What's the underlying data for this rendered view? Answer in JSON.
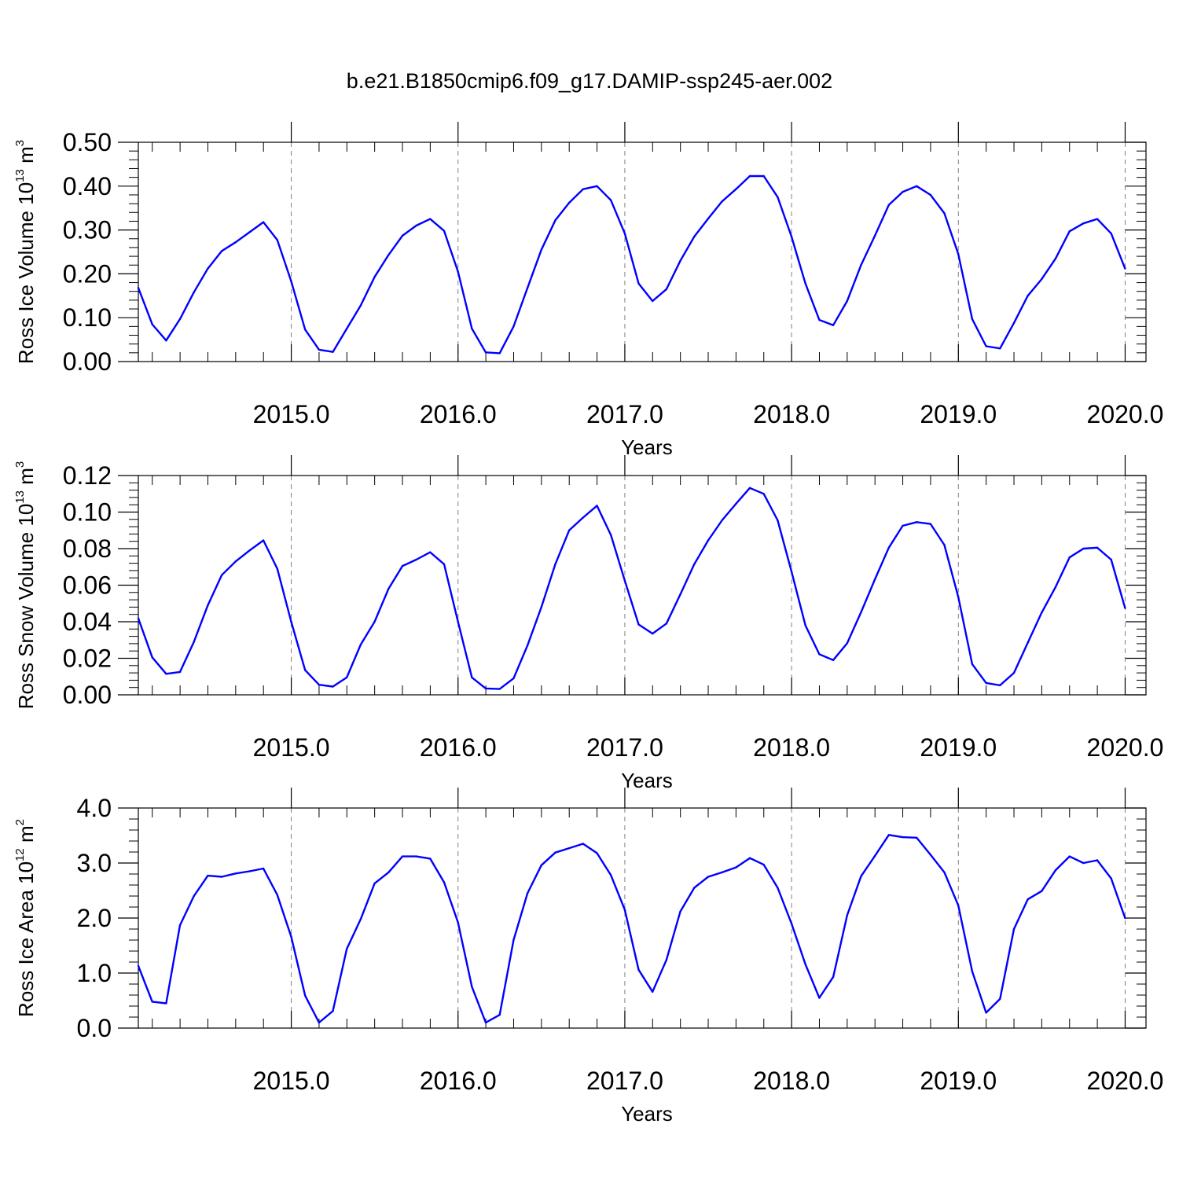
{
  "figure": {
    "title": "b.e21.B1850cmip6.f09_g17.DAMIP-ssp245-aer.002"
  },
  "colors": {
    "line": "#0000ff",
    "axis": "#000000",
    "grid": "#808080"
  },
  "chart_data": [
    {
      "type": "line",
      "title": "",
      "xlabel": "Years",
      "ylabel_parts": [
        "Ross Ice Volume 10",
        "13",
        " m",
        "3"
      ],
      "ylim": [
        0,
        0.5
      ],
      "yticks": [
        "0.00",
        "0.10",
        "0.20",
        "0.30",
        "0.40",
        "0.50"
      ],
      "xlim": [
        2014.083,
        2020.125
      ],
      "xticks": [
        "2015.0",
        "2016.0",
        "2017.0",
        "2018.0",
        "2019.0",
        "2020.0"
      ],
      "grid": "dashed vertical at year boundaries",
      "series": [
        {
          "x_start": 2014.083,
          "x_step": 0.0833333,
          "values": [
            0.168,
            0.085,
            0.048,
            0.097,
            0.158,
            0.212,
            0.252,
            0.272,
            0.295,
            0.318,
            0.277,
            0.183,
            0.073,
            0.027,
            0.022,
            0.075,
            0.128,
            0.193,
            0.243,
            0.287,
            0.31,
            0.325,
            0.298,
            0.205,
            0.075,
            0.021,
            0.019,
            0.08,
            0.168,
            0.255,
            0.322,
            0.362,
            0.393,
            0.4,
            0.368,
            0.292,
            0.178,
            0.138,
            0.165,
            0.23,
            0.285,
            0.326,
            0.365,
            0.393,
            0.423,
            0.423,
            0.375,
            0.285,
            0.178,
            0.095,
            0.083,
            0.138,
            0.22,
            0.287,
            0.357,
            0.387,
            0.4,
            0.38,
            0.338,
            0.245,
            0.097,
            0.035,
            0.03,
            0.088,
            0.15,
            0.188,
            0.235,
            0.297,
            0.315,
            0.325,
            0.292,
            0.212
          ]
        }
      ]
    },
    {
      "type": "line",
      "title": "",
      "xlabel": "Years",
      "ylabel_parts": [
        "Ross Snow Volume 10",
        "13",
        " m",
        "3"
      ],
      "ylim": [
        0,
        0.12
      ],
      "yticks": [
        "0.00",
        "0.02",
        "0.04",
        "0.06",
        "0.08",
        "0.10",
        "0.12"
      ],
      "xlim": [
        2014.083,
        2020.125
      ],
      "xticks": [
        "2015.0",
        "2016.0",
        "2017.0",
        "2018.0",
        "2019.0",
        "2020.0"
      ],
      "grid": "dashed vertical at year boundaries",
      "series": [
        {
          "x_start": 2014.083,
          "x_step": 0.0833333,
          "values": [
            0.0418,
            0.0205,
            0.0115,
            0.0125,
            0.029,
            0.049,
            0.0655,
            0.073,
            0.079,
            0.0845,
            0.069,
            0.04,
            0.0135,
            0.0055,
            0.0045,
            0.0095,
            0.0275,
            0.04,
            0.058,
            0.0705,
            0.074,
            0.078,
            0.0715,
            0.04,
            0.0095,
            0.0035,
            0.0032,
            0.009,
            0.027,
            0.048,
            0.0715,
            0.09,
            0.097,
            0.1035,
            0.0875,
            0.0625,
            0.0385,
            0.0335,
            0.039,
            0.055,
            0.0715,
            0.0845,
            0.0955,
            0.1045,
            0.1132,
            0.11,
            0.0955,
            0.0675,
            0.038,
            0.0222,
            0.019,
            0.0282,
            0.0452,
            0.0632,
            0.0805,
            0.0925,
            0.0945,
            0.0935,
            0.082,
            0.0535,
            0.0168,
            0.0065,
            0.0052,
            0.012,
            0.0285,
            0.045,
            0.059,
            0.0752,
            0.08,
            0.0805,
            0.074,
            0.0475
          ]
        }
      ]
    },
    {
      "type": "line",
      "title": "",
      "xlabel": "Years",
      "ylabel_parts": [
        "Ross Ice Area 10",
        "12",
        " m",
        "2"
      ],
      "ylim": [
        0,
        4.0
      ],
      "yticks": [
        "0.0",
        "1.0",
        "2.0",
        "3.0",
        "4.0"
      ],
      "xlim": [
        2014.083,
        2020.125
      ],
      "xticks": [
        "2015.0",
        "2016.0",
        "2017.0",
        "2018.0",
        "2019.0",
        "2020.0"
      ],
      "grid": "dashed vertical at year boundaries",
      "series": [
        {
          "x_start": 2014.083,
          "x_step": 0.0833333,
          "values": [
            1.13,
            0.48,
            0.45,
            1.87,
            2.4,
            2.77,
            2.75,
            2.81,
            2.85,
            2.9,
            2.42,
            1.66,
            0.59,
            0.1,
            0.31,
            1.44,
            1.98,
            2.63,
            2.83,
            3.12,
            3.12,
            3.08,
            2.65,
            1.92,
            0.75,
            0.1,
            0.24,
            1.6,
            2.45,
            2.96,
            3.19,
            3.27,
            3.35,
            3.18,
            2.78,
            2.15,
            1.06,
            0.66,
            1.24,
            2.12,
            2.55,
            2.75,
            2.83,
            2.92,
            3.09,
            2.97,
            2.55,
            1.9,
            1.16,
            0.55,
            0.93,
            2.05,
            2.76,
            3.13,
            3.51,
            3.47,
            3.46,
            3.15,
            2.83,
            2.23,
            1.03,
            0.28,
            0.53,
            1.8,
            2.34,
            2.49,
            2.87,
            3.12,
            3.0,
            3.05,
            2.72,
            2.0
          ]
        }
      ]
    }
  ]
}
